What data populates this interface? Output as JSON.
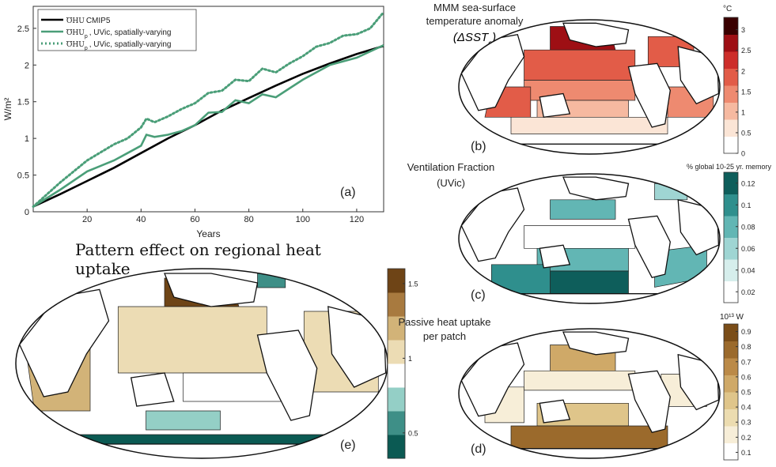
{
  "chart_data": [
    {
      "id": "a",
      "type": "line",
      "panel_label": "(a)",
      "xlabel": "Years",
      "ylabel": "W/m²",
      "xlim": [
        0,
        130
      ],
      "ylim": [
        0,
        2.8
      ],
      "xticks": [
        20,
        40,
        60,
        80,
        100,
        120
      ],
      "yticks": [
        0,
        0.5,
        1,
        1.5,
        2,
        2.5
      ],
      "legend_position": "top-left",
      "series": [
        {
          "name": "OHU CMIP5",
          "legend_symbol": "OHU",
          "legend_text": "CMIP5",
          "color": "#000000",
          "style": "solid",
          "x": [
            0,
            10,
            20,
            30,
            40,
            50,
            60,
            70,
            80,
            90,
            100,
            110,
            120,
            130
          ],
          "y": [
            0.07,
            0.24,
            0.42,
            0.6,
            0.8,
            1.0,
            1.18,
            1.38,
            1.55,
            1.72,
            1.88,
            2.02,
            2.15,
            2.26
          ]
        },
        {
          "name": "OHU_p UVic spatially-varying",
          "legend_symbol": "OHU",
          "legend_sub": "p",
          "legend_text": ", UVic, spatially-varying",
          "color": "#4a9e78",
          "style": "solid",
          "x": [
            0,
            10,
            20,
            30,
            35,
            40,
            42,
            45,
            50,
            55,
            60,
            65,
            70,
            75,
            80,
            85,
            90,
            95,
            100,
            110,
            120,
            130
          ],
          "y": [
            0.07,
            0.3,
            0.55,
            0.7,
            0.8,
            0.9,
            1.05,
            1.02,
            1.05,
            1.1,
            1.18,
            1.35,
            1.36,
            1.52,
            1.48,
            1.6,
            1.56,
            1.68,
            1.8,
            2.0,
            2.1,
            2.27
          ]
        },
        {
          "name": "OHU_p UVic spatially-varying (dotted)",
          "legend_symbol": "OHU",
          "legend_sub": "p",
          "legend_text": ", UVic, spatially-varying",
          "color": "#4a9e78",
          "style": "dotted",
          "x": [
            0,
            10,
            20,
            30,
            35,
            40,
            42,
            45,
            50,
            55,
            60,
            65,
            70,
            75,
            80,
            85,
            90,
            95,
            100,
            105,
            110,
            115,
            120,
            125,
            130
          ],
          "y": [
            0.07,
            0.4,
            0.7,
            0.92,
            1.0,
            1.15,
            1.27,
            1.22,
            1.3,
            1.4,
            1.48,
            1.62,
            1.65,
            1.8,
            1.78,
            1.95,
            1.9,
            2.02,
            2.12,
            2.25,
            2.3,
            2.4,
            2.42,
            2.5,
            2.72
          ]
        }
      ]
    },
    {
      "id": "b",
      "type": "heatmap",
      "panel_label": "(b)",
      "title_lines": [
        "MMM sea-surface",
        "temperature anomaly"
      ],
      "title_math": "(ΔSST",
      "title_math_sub": "c",
      "colorbar_unit": "°C",
      "colorbar_ticks": [
        "3",
        "2.5",
        "2",
        "1.5",
        "1",
        "0.5",
        "0"
      ],
      "colorbar_range": [
        0,
        3.3
      ],
      "colors": [
        "#ffffff",
        "#fbe5d6",
        "#f6b9a0",
        "#ee8a70",
        "#e25c48",
        "#cd2e2a",
        "#9e0f14",
        "#3a0000"
      ]
    },
    {
      "id": "c",
      "type": "heatmap",
      "panel_label": "(c)",
      "title_lines": [
        "Ventilation Fraction",
        "(UVic)"
      ],
      "colorbar_unit": "% global 10-25 yr. memory",
      "colorbar_ticks": [
        "0.12",
        "0.1",
        "0.08",
        "0.06",
        "0.04",
        "0.02"
      ],
      "colorbar_range": [
        0.01,
        0.13
      ],
      "colors": [
        "#ffffff",
        "#d6eeec",
        "#9fd5d3",
        "#62b6b4",
        "#2f8f8d",
        "#0e5e5b"
      ]
    },
    {
      "id": "d",
      "type": "heatmap",
      "panel_label": "(d)",
      "title_lines": [
        "Passive heat uptake",
        "per patch"
      ],
      "colorbar_unit": "10¹³ W",
      "colorbar_ticks": [
        "0.9",
        "0.8",
        "0.7",
        "0.6",
        "0.5",
        "0.4",
        "0.3",
        "0.2",
        "0.1"
      ],
      "colorbar_range": [
        0.05,
        0.95
      ],
      "colors": [
        "#ffffff",
        "#f7eed8",
        "#ecdcb0",
        "#dfc58a",
        "#cfa968",
        "#bb8a48",
        "#9b6a2c",
        "#7a4d18"
      ]
    },
    {
      "id": "e",
      "type": "heatmap",
      "panel_label": "(e)",
      "title": "Pattern effect on regional heat uptake",
      "colorbar_ticks": [
        "1.5",
        "1",
        "0.5"
      ],
      "colorbar_range": [
        0.33,
        1.6
      ],
      "colors": [
        "#0b5a53",
        "#3e8f87",
        "#94cfc6",
        "#ffffff",
        "#ecdcb4",
        "#d2b378",
        "#a87a3f",
        "#6e4416"
      ]
    }
  ]
}
